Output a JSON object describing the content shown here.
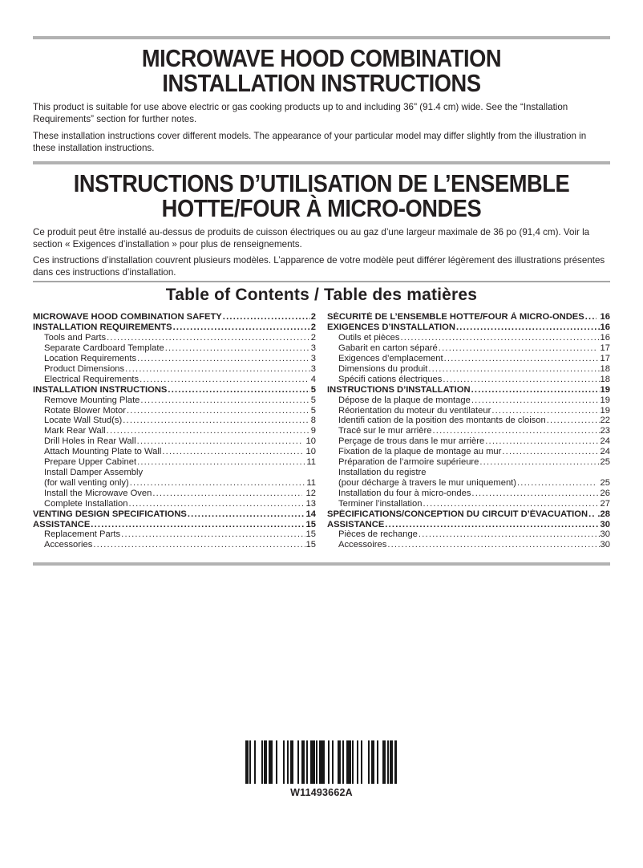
{
  "header_en": {
    "title_line1": "MICROWAVE HOOD COMBINATION",
    "title_line2": "INSTALLATION INSTRUCTIONS",
    "para1": "This product is suitable for use above electric or gas cooking products up to and including 36\" (91.4 cm) wide. See the “Installation Requirements” section for further notes.",
    "para2": "These installation instructions cover different models. The appearance of your particular model may differ slightly from the illustration in these installation instructions."
  },
  "header_fr": {
    "title_line1": "INSTRUCTIONS D’UTILISATION DE L’ENSEMBLE",
    "title_line2": "HOTTE/FOUR À MICRO-ONDES",
    "para1": "Ce produit peut être installé au-dessus de produits de cuisson électriques ou au gaz d’une largeur maximale de 36 po (91,4 cm). Voir la section « Exigences d’installation » pour plus de renseignements.",
    "para2": "Ces instructions d’installation couvrent plusieurs modèles. L’apparence de votre modèle peut différer légèrement des illustrations présentes dans ces instructions d’installation."
  },
  "toc": {
    "heading": "Table of Contents / Table des matières",
    "left": [
      {
        "label": "MICROWAVE HOOD COMBINATION SAFETY",
        "page": "2",
        "style": "main"
      },
      {
        "label": "INSTALLATION REQUIREMENTS",
        "page": "2",
        "style": "main"
      },
      {
        "label": "Tools and Parts",
        "page": "2",
        "style": "sub"
      },
      {
        "label": "Separate Cardboard Template",
        "page": "3",
        "style": "sub"
      },
      {
        "label": "Location Requirements",
        "page": " 3",
        "style": "sub"
      },
      {
        "label": "Product Dimensions",
        "page": "3",
        "style": "sub"
      },
      {
        "label": "Electrical Requirements",
        "page": " 4",
        "style": "sub"
      },
      {
        "label": "INSTALLATION INSTRUCTIONS",
        "page": "5",
        "style": "main"
      },
      {
        "label": "Remove Mounting Plate",
        "page": "5",
        "style": "sub"
      },
      {
        "label": "Rotate Blower Motor",
        "page": "5",
        "style": "sub"
      },
      {
        "label": "Locate Wall Stud(s)",
        "page": " 8",
        "style": "sub"
      },
      {
        "label": "Mark Rear Wall",
        "page": "9",
        "style": "sub"
      },
      {
        "label": "Drill Holes in Rear Wall",
        "page": " 10",
        "style": "sub"
      },
      {
        "label": "Attach Mounting Plate to Wall",
        "page": " 10",
        "style": "sub"
      },
      {
        "label": "Prepare Upper Cabinet",
        "page": "11",
        "style": "sub"
      },
      {
        "label": "Install Damper Assembly",
        "page": null,
        "style": "sub"
      },
      {
        "label": "(for wall venting only)",
        "page": "11",
        "style": "sub"
      },
      {
        "label": "Install the Microwave Oven",
        "page": " 12",
        "style": "sub"
      },
      {
        "label": "Complete Installation",
        "page": "13",
        "style": "sub"
      },
      {
        "label": "VENTING DESIGN SPECIFICATIONS ",
        "page": "14",
        "style": "main"
      },
      {
        "label": "ASSISTANCE",
        "page": "15",
        "style": "main"
      },
      {
        "label": "Replacement Parts",
        "page": "15",
        "style": "sub"
      },
      {
        "label": "Accessories",
        "page": "15",
        "style": "sub"
      }
    ],
    "right": [
      {
        "label": "SÉCURITÉ DE L’ENSEMBLE HOTTE/FOUR À MICRO-ONDES",
        "page": " 16",
        "style": "main"
      },
      {
        "label": "EXIGENCES D’INSTALLATION",
        "page": "16",
        "style": "main"
      },
      {
        "label": "Outils et pièces",
        "page": "16",
        "style": "sub"
      },
      {
        "label": "Gabarit en carton séparé",
        "page": " 17",
        "style": "sub"
      },
      {
        "label": "Exigences d’emplacement",
        "page": "17",
        "style": "sub"
      },
      {
        "label": "Dimensions du produit",
        "page": "18",
        "style": "sub"
      },
      {
        "label": "Spécifi cations électriques",
        "page": "18",
        "style": "sub"
      },
      {
        "label": "INSTRUCTIONS D’INSTALLATION",
        "page": "19",
        "style": "main"
      },
      {
        "label": "Dépose de la plaque de montage",
        "page": "19",
        "style": "sub"
      },
      {
        "label": "Réorientation du moteur du ventilateur",
        "page": "19",
        "style": "sub"
      },
      {
        "label": "Identifi cation de la position des montants de cloison",
        "page": "22",
        "style": "sub"
      },
      {
        "label": "Tracé sur le mur arrière",
        "page": "23",
        "style": "sub"
      },
      {
        "label": "Perçage de trous dans le mur arrière",
        "page": "24",
        "style": "sub"
      },
      {
        "label": "Fixation de la plaque de montage au mur",
        "page": "24",
        "style": "sub"
      },
      {
        "label": "Préparation de l’armoire supérieure",
        "page": "25",
        "style": "sub"
      },
      {
        "label": "Installation du registre",
        "page": null,
        "style": "sub"
      },
      {
        "label": "(pour décharge à travers le mur uniquement)",
        "page": " 25",
        "style": "sub"
      },
      {
        "label": "Installation du four à micro-ondes",
        "page": "26",
        "style": "sub"
      },
      {
        "label": "Terminer l’installation",
        "page": "27",
        "style": "sub"
      },
      {
        "label": "SPÉCIFICATIONS/CONCEPTION DU CIRCUIT D’ÉVACUATION",
        "page": " .28",
        "style": "main"
      },
      {
        "label": "ASSISTANCE",
        "page": "30",
        "style": "main"
      },
      {
        "label": "Pièces de rechange",
        "page": "30",
        "style": "sub"
      },
      {
        "label": "Accessoires",
        "page": "30",
        "style": "sub"
      }
    ]
  },
  "footer": {
    "part_number": "W11493662A",
    "barcode_pattern": "2112141121321412112312211231114212132112311212141122132111212"
  },
  "colors": {
    "text": "#231f20",
    "rule_thick": "#b2b2b2",
    "rule_thin": "#a6a6a6",
    "barcode": "#181818"
  }
}
